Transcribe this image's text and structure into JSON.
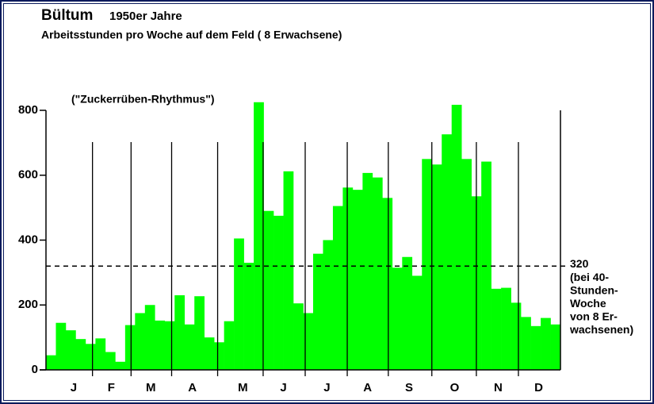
{
  "chart_data": {
    "type": "bar",
    "title": "Bültum",
    "title_suffix": "1950er Jahre",
    "subtitle": "Arbeitsstunden pro Woche auf dem Feld ( 8 Erwachsene)",
    "annotation": "(\"Zuckerrüben-Rhythmus\")",
    "x": [
      1,
      2,
      3,
      4,
      5,
      6,
      7,
      8,
      9,
      10,
      11,
      12,
      13,
      14,
      15,
      16,
      17,
      18,
      19,
      20,
      21,
      22,
      23,
      24,
      25,
      26,
      27,
      28,
      29,
      30,
      31,
      32,
      33,
      34,
      35,
      36,
      37,
      38,
      39,
      40,
      41,
      42,
      43,
      44,
      45,
      46,
      47,
      48,
      49,
      50,
      51,
      52
    ],
    "values": [
      45,
      145,
      122,
      95,
      80,
      97,
      55,
      25,
      138,
      175,
      200,
      152,
      150,
      230,
      140,
      227,
      100,
      85,
      150,
      405,
      330,
      825,
      490,
      475,
      612,
      205,
      175,
      358,
      400,
      505,
      562,
      555,
      607,
      593,
      530,
      315,
      348,
      290,
      650,
      633,
      726,
      817,
      650,
      535,
      642,
      250,
      253,
      207,
      163,
      135,
      160,
      140
    ],
    "color": "#00ff00",
    "xlim": [
      0.5,
      52.5
    ],
    "xticks": [
      {
        "value": 3.3,
        "label": "J"
      },
      {
        "value": 7.1,
        "label": "F"
      },
      {
        "value": 11.1,
        "label": "M"
      },
      {
        "value": 15.3,
        "label": "A"
      },
      {
        "value": 20.4,
        "label": "M"
      },
      {
        "value": 24.5,
        "label": "J"
      },
      {
        "value": 28.9,
        "label": "J"
      },
      {
        "value": 33.0,
        "label": "A"
      },
      {
        "value": 37.2,
        "label": "S"
      },
      {
        "value": 41.8,
        "label": "O"
      },
      {
        "value": 46.2,
        "label": "N"
      },
      {
        "value": 50.3,
        "label": "D"
      }
    ],
    "ylim": [
      0,
      800
    ],
    "yticks": [
      0,
      200,
      400,
      600,
      800
    ],
    "reference_line": {
      "value": 320,
      "note": [
        "(bei 40-",
        "Stunden-",
        "Woche",
        "von 8 Er-",
        "wachsenen)"
      ]
    }
  }
}
